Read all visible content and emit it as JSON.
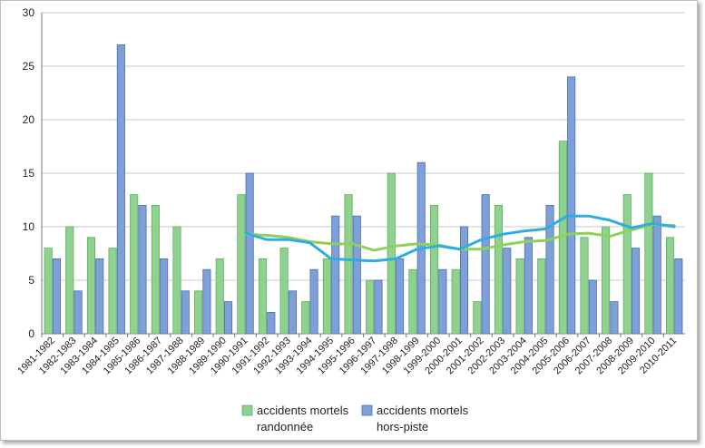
{
  "chart_data": {
    "type": "bar",
    "categories": [
      "1981-1982",
      "1982-1983",
      "1983-1984",
      "1984-1985",
      "1985-1986",
      "1986-1987",
      "1987-1988",
      "1988-1989",
      "1989-1990",
      "1990-1991",
      "1991-1992",
      "1992-1993",
      "1993-1994",
      "1994-1995",
      "1995-1996",
      "1996-1997",
      "1997-1998",
      "1998-1999",
      "1999-2000",
      "2000-2001",
      "2001-2002",
      "2002-2003",
      "2003-2004",
      "2004-2005",
      "2005-2006",
      "2006-2007",
      "2007-2008",
      "2008-2009",
      "2009-2010",
      "2010-2011"
    ],
    "series": [
      {
        "name": "accidents mortels randonnée",
        "name_lines": [
          "accidents mortels",
          "randonnée"
        ],
        "color": "#8fd18f",
        "stroke": "#5fae5f",
        "values": [
          8,
          10,
          9,
          8,
          13,
          12,
          10,
          4,
          7,
          13,
          7,
          8,
          3,
          7,
          13,
          5,
          15,
          6,
          12,
          6,
          3,
          12,
          7,
          7,
          18,
          9,
          10,
          13,
          15,
          9
        ]
      },
      {
        "name": "accidents mortels hors-piste",
        "name_lines": [
          "accidents mortels",
          "hors-piste"
        ],
        "color": "#7f9fd9",
        "stroke": "#4a6fb5",
        "values": [
          7,
          4,
          7,
          27,
          12,
          7,
          4,
          6,
          3,
          15,
          2,
          4,
          6,
          11,
          11,
          5,
          7,
          16,
          6,
          10,
          13,
          8,
          9,
          12,
          24,
          5,
          3,
          8,
          11,
          7
        ]
      }
    ],
    "trend_lines": [
      {
        "color": "#8fd05a",
        "values": [
          null,
          null,
          null,
          null,
          null,
          null,
          null,
          null,
          null,
          9.3,
          9.2,
          9.0,
          8.6,
          8.4,
          8.4,
          7.8,
          8.2,
          8.4,
          8.3,
          7.9,
          7.9,
          8.3,
          8.6,
          8.7,
          9.3,
          9.4,
          9.1,
          9.7,
          10.2,
          10.1
        ]
      },
      {
        "color": "#2eaee0",
        "values": [
          null,
          null,
          null,
          null,
          null,
          null,
          null,
          null,
          null,
          9.4,
          8.8,
          8.8,
          8.5,
          7.0,
          6.9,
          6.8,
          7.0,
          7.9,
          8.2,
          7.9,
          8.8,
          9.3,
          9.6,
          9.8,
          11.0,
          11.0,
          10.6,
          9.9,
          10.3,
          10.0
        ]
      }
    ],
    "ylim": [
      0,
      30
    ],
    "yticks": [
      0,
      5,
      10,
      15,
      20,
      25,
      30
    ],
    "grid": true,
    "legend": "bottom-center"
  }
}
